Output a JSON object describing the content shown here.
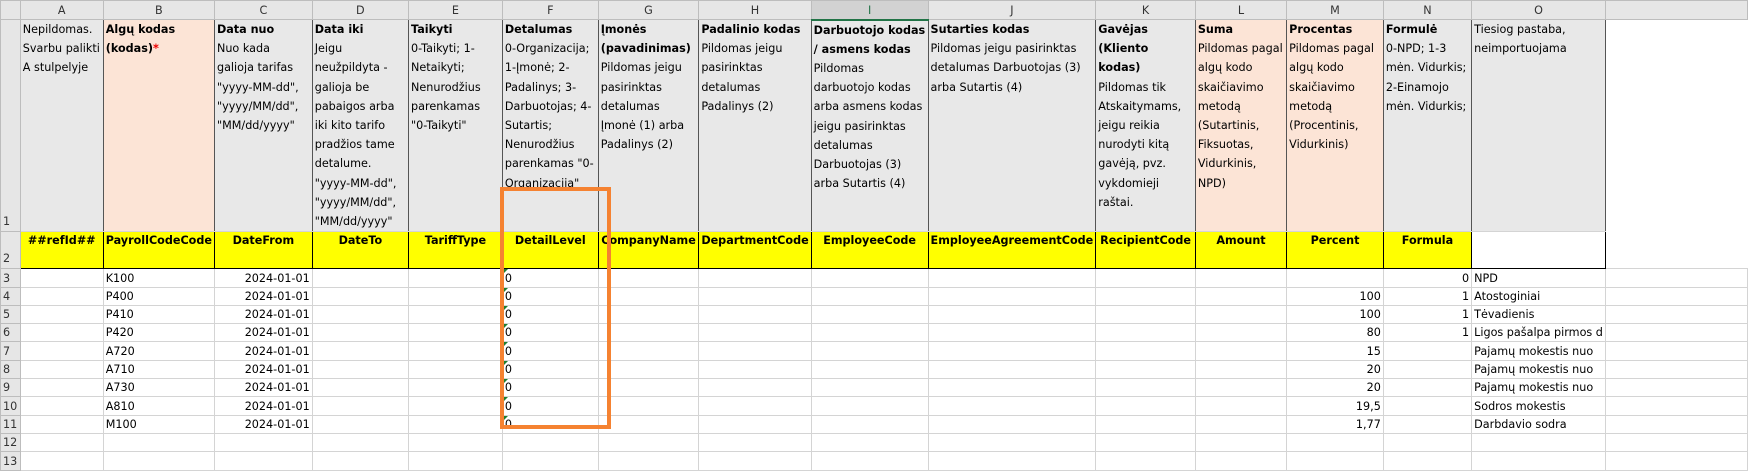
{
  "columns": [
    "A",
    "B",
    "C",
    "D",
    "E",
    "F",
    "G",
    "H",
    "I",
    "J",
    "K",
    "L",
    "M",
    "N",
    "O",
    ""
  ],
  "selected_column": "I",
  "row_numbers": [
    "1",
    "2",
    "3",
    "4",
    "5",
    "6",
    "7",
    "8",
    "9",
    "10",
    "11",
    "12",
    "13"
  ],
  "descriptions": [
    {
      "title": "",
      "text": "Nepildomas. Svarbu palikti A stulpelyje"
    },
    {
      "title": "Algų kodas (kodas)",
      "required": "*",
      "text": ""
    },
    {
      "title": "Data nuo",
      "text": "Nuo kada galioja tarifas \"yyyy-MM-dd\", \"yyyy/MM/dd\", \"MM/dd/yyyy\""
    },
    {
      "title": "Data iki",
      "text": "Jeigu neužpildyta - galioja be pabaigos arba iki kito tarifo pradžios tame detalume. \"yyyy-MM-dd\", \"yyyy/MM/dd\", \"MM/dd/yyyy\""
    },
    {
      "title": "Taikyti",
      "text": "0-Taikyti; 1-Netaikyti; Nenurodžius parenkamas \"0-Taikyti\""
    },
    {
      "title": "Detalumas",
      "text": "0-Organizacija; 1-Įmonė; 2-Padalinys; 3-Darbuotojas; 4-Sutartis; Nenurodžius parenkamas \"0-Organizacija\""
    },
    {
      "title": "Įmonės (pavadinimas)",
      "text": "Pildomas jeigu pasirinktas detalumas Įmonė (1) arba Padalinys (2)"
    },
    {
      "title": "Padalinio kodas",
      "text": "Pildomas jeigu pasirinktas detalumas Padalinys (2)"
    },
    {
      "title": "Darbuotojo kodas / asmens kodas",
      "text": "Pildomas darbuotojo kodas arba asmens kodas jeigu pasirinktas detalumas Darbuotojas (3) arba Sutartis (4)"
    },
    {
      "title": "Sutarties kodas",
      "text": "Pildomas jeigu pasirinktas detalumas Darbuotojas (3) arba Sutartis (4)"
    },
    {
      "title": "Gavėjas (Kliento kodas)",
      "text": "Pildomas tik Atskaitymams, jeigu reikia nurodyti kitą gavėją, pvz. vykdomieji raštai."
    },
    {
      "title": "Suma",
      "text": "Pildomas pagal algų kodo skaičiavimo metodą (Sutartinis, Fiksuotas, Vidurkinis, NPD)"
    },
    {
      "title": "Procentas",
      "text": "Pildomas pagal algų kodo skaičiavimo metodą (Procentinis, Vidurkinis)"
    },
    {
      "title": "Formulė",
      "text": "0-NPD; 1-3 mėn. Vidurkis; 2-Einamojo mėn. Vidurkis;"
    },
    {
      "title": "",
      "text": "Tiesiog pastaba, neimportuojama"
    }
  ],
  "field_names": [
    "##refId##",
    "PayrollCodeCode",
    "DateFrom",
    "DateTo",
    "TariffType",
    "DetailLevel",
    "CompanyName",
    "DepartmentCode",
    "EmployeeCode",
    "EmployeeAgreementCode",
    "RecipientCode",
    "Amount",
    "Percent",
    "Formula",
    ""
  ],
  "rows": [
    [
      "",
      "K100",
      "2024-01-01",
      "",
      "",
      "0",
      "",
      "",
      "",
      "",
      "",
      "",
      "",
      "0",
      "NPD"
    ],
    [
      "",
      "P400",
      "2024-01-01",
      "",
      "",
      "0",
      "",
      "",
      "",
      "",
      "",
      "",
      "100",
      "1",
      "Atostoginiai"
    ],
    [
      "",
      "P410",
      "2024-01-01",
      "",
      "",
      "0",
      "",
      "",
      "",
      "",
      "",
      "",
      "100",
      "1",
      "Tėvadienis"
    ],
    [
      "",
      "P420",
      "2024-01-01",
      "",
      "",
      "0",
      "",
      "",
      "",
      "",
      "",
      "",
      "80",
      "1",
      "Ligos pašalpa pirmos d"
    ],
    [
      "",
      "A720",
      "2024-01-01",
      "",
      "",
      "0",
      "",
      "",
      "",
      "",
      "",
      "",
      "15",
      "",
      "Pajamų mokestis nuo"
    ],
    [
      "",
      "A710",
      "2024-01-01",
      "",
      "",
      "0",
      "",
      "",
      "",
      "",
      "",
      "",
      "20",
      "",
      "Pajamų mokestis nuo"
    ],
    [
      "",
      "A730",
      "2024-01-01",
      "",
      "",
      "0",
      "",
      "",
      "",
      "",
      "",
      "",
      "20",
      "",
      "Pajamų mokestis nuo"
    ],
    [
      "",
      "A810",
      "2024-01-01",
      "",
      "",
      "0",
      "",
      "",
      "",
      "",
      "",
      "",
      "19,5",
      "",
      "Sodros mokestis"
    ],
    [
      "",
      "M100",
      "2024-01-01",
      "",
      "",
      "0",
      "",
      "",
      "",
      "",
      "",
      "",
      "1,77",
      "",
      "Darbdavio sodra"
    ]
  ],
  "colors": {
    "field_row": "#ffff00",
    "required_header": "#fce4d6",
    "header": "#e8e8e8",
    "highlight": "#f58231",
    "text_number_marker": "#1e7d32"
  }
}
